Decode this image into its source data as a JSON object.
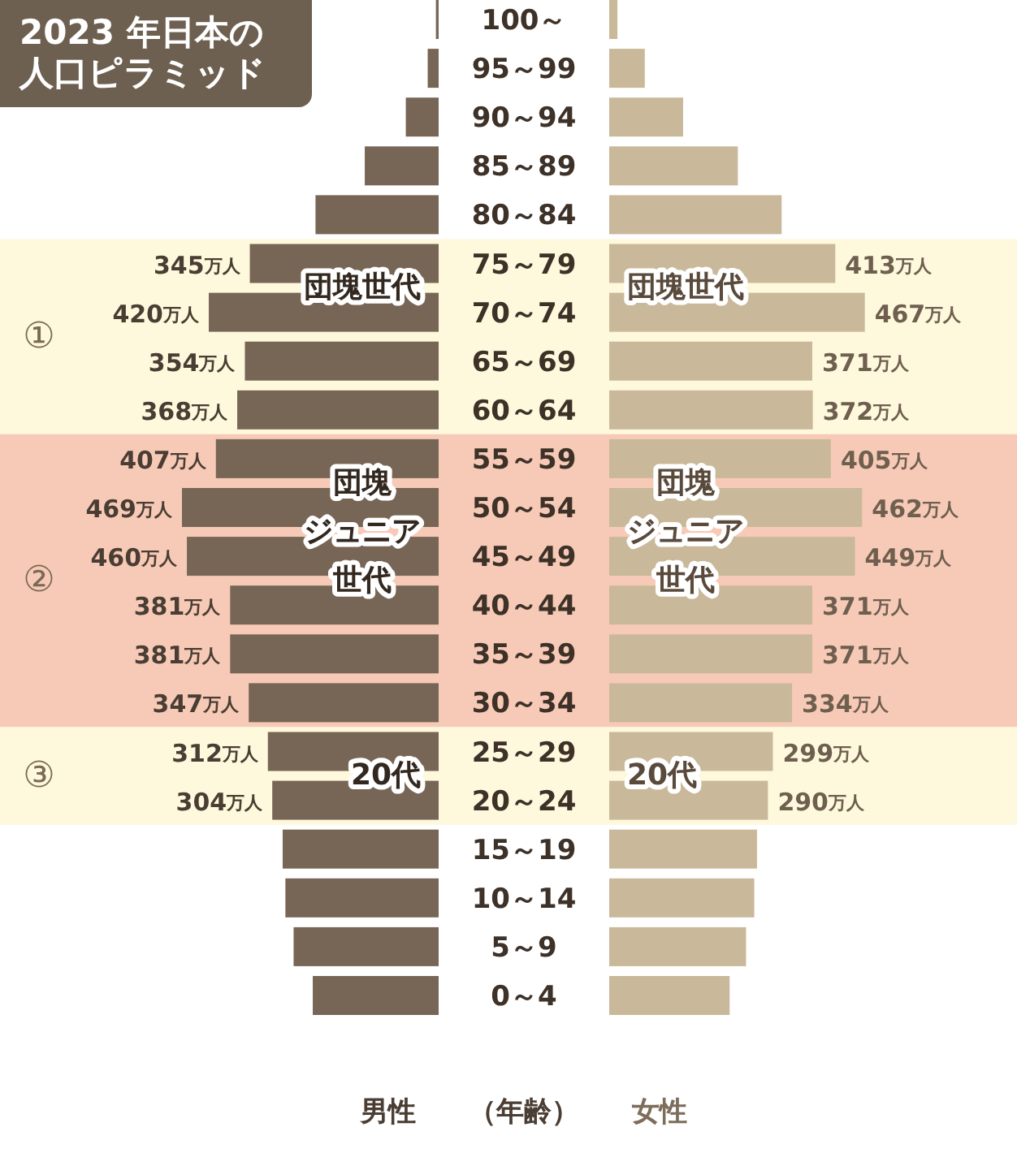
{
  "chart_data": [
    {
      "type": "bar",
      "orientation": "horizontal",
      "title": "2023 年日本の人口ピラミッド",
      "tick_labels": false,
      "xlim": [
        469,
        0
      ],
      "categories": [
        "100～",
        "95～99",
        "90～94",
        "85～89",
        "80～84",
        "75～79",
        "70～74",
        "65～69",
        "60～64",
        "55～59",
        "50～54",
        "45～49",
        "40～44",
        "35～39",
        "30～34",
        "25～29",
        "20～24",
        "15～19",
        "10～14",
        "5～9",
        "0～4"
      ],
      "series": [
        {
          "name": "男性",
          "color": "#776656",
          "values": [
            5,
            20,
            60,
            135,
            225,
            345,
            420,
            354,
            368,
            407,
            469,
            460,
            381,
            381,
            347,
            312,
            304,
            285,
            280,
            265,
            230
          ],
          "value_labels": [
            null,
            null,
            null,
            null,
            null,
            "345万人",
            "420万人",
            "354万人",
            "368万人",
            "407万人",
            "469万人",
            "460万人",
            "381万人",
            "381万人",
            "347万人",
            "312万人",
            "304万人",
            null,
            null,
            null,
            null
          ]
        }
      ],
      "bands": [
        {
          "axis": "y",
          "from": "75～79",
          "to": "60～64",
          "label": "①",
          "color": "#fef8dc"
        },
        {
          "axis": "y",
          "from": "55～59",
          "to": "30～34",
          "label": "②",
          "color": "#f7cab7"
        },
        {
          "axis": "y",
          "from": "25～29",
          "to": "20～24",
          "label": "③",
          "color": "#fef8dc"
        }
      ],
      "annotations": [
        "団塊世代",
        "団塊ジュニア世代",
        "20代"
      ]
    },
    {
      "type": "bar",
      "orientation": "horizontal",
      "ylabel": "（年齢）",
      "tick_labels": "y",
      "xlim": [
        0,
        467
      ],
      "categories": [
        "100～",
        "95～99",
        "90～94",
        "85～89",
        "80～84",
        "75～79",
        "70～74",
        "65～69",
        "60～64",
        "55～59",
        "50～54",
        "45～49",
        "40～44",
        "35～39",
        "30～34",
        "25～29",
        "20～24",
        "15～19",
        "10～14",
        "5～9",
        "0～4"
      ],
      "series": [
        {
          "name": "女性",
          "color": "#c9b99a",
          "values": [
            15,
            65,
            135,
            235,
            315,
            413,
            467,
            371,
            372,
            405,
            462,
            449,
            371,
            371,
            334,
            299,
            290,
            270,
            265,
            250,
            220
          ],
          "value_labels": [
            null,
            null,
            null,
            null,
            null,
            "413万人",
            "467万人",
            "371万人",
            "372万人",
            "405万人",
            "462万人",
            "449万人",
            "371万人",
            "371万人",
            "334万人",
            "299万人",
            "290万人",
            null,
            null,
            null,
            null
          ]
        }
      ],
      "bands": [
        {
          "axis": "y",
          "from": "75～79",
          "to": "60～64",
          "color": "#fef8dc"
        },
        {
          "axis": "y",
          "from": "55～59",
          "to": "30～34",
          "color": "#f7cab7"
        },
        {
          "axis": "y",
          "from": "25～29",
          "to": "20～24",
          "color": "#fef8dc"
        }
      ],
      "annotations": [
        "団塊世代",
        "団塊ジュニア世代",
        "20代"
      ]
    }
  ]
}
